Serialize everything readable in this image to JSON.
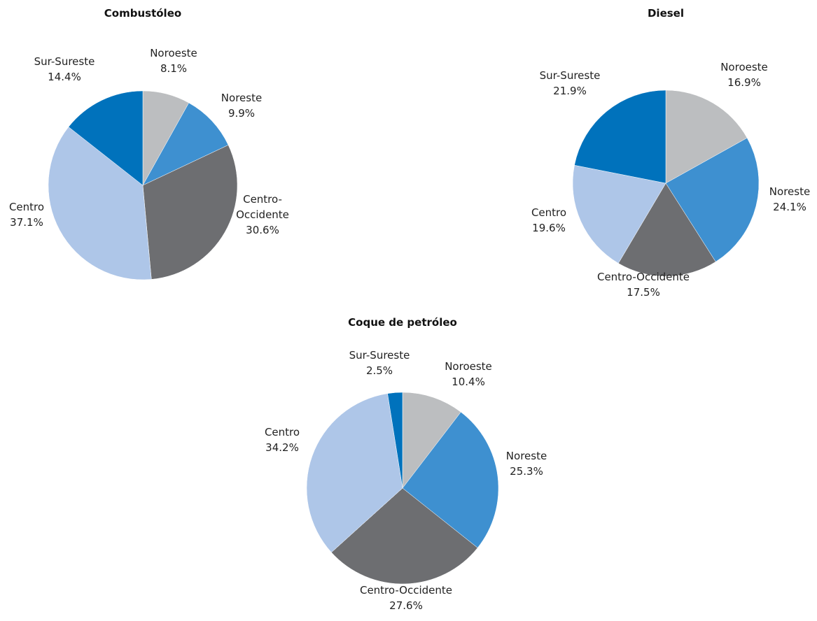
{
  "chart_data": [
    {
      "type": "pie",
      "title": "Combustóleo",
      "categories": [
        "Noroeste",
        "Noreste",
        "Centro-Occidente",
        "Centro",
        "Sur-Sureste"
      ],
      "values": [
        8.1,
        9.9,
        30.6,
        37.1,
        14.4
      ],
      "labels": [
        [
          "Noroeste",
          "8.1%"
        ],
        [
          "Noreste",
          "9.9%"
        ],
        [
          "Centro-",
          "Occidente",
          "30.6%"
        ],
        [
          "Centro",
          "37.1%"
        ],
        [
          "Sur-Sureste",
          "14.4%"
        ]
      ],
      "colors": [
        "#bcbec0",
        "#3e90d0",
        "#6d6e71",
        "#aec6e8",
        "#0072bc"
      ]
    },
    {
      "type": "pie",
      "title": "Diesel",
      "categories": [
        "Noroeste",
        "Noreste",
        "Centro-Occidente",
        "Centro",
        "Sur-Sureste"
      ],
      "values": [
        16.9,
        24.1,
        17.5,
        19.6,
        21.9
      ],
      "labels": [
        [
          "Noroeste",
          "16.9%"
        ],
        [
          "Noreste",
          "24.1%"
        ],
        [
          "Centro-Occidente",
          "17.5%"
        ],
        [
          "Centro",
          "19.6%"
        ],
        [
          "Sur-Sureste",
          "21.9%"
        ]
      ],
      "colors": [
        "#bcbec0",
        "#3e90d0",
        "#6d6e71",
        "#aec6e8",
        "#0072bc"
      ]
    },
    {
      "type": "pie",
      "title": "Coque de petróleo",
      "categories": [
        "Noroeste",
        "Noreste",
        "Centro-Occidente",
        "Centro",
        "Sur-Sureste"
      ],
      "values": [
        10.4,
        25.3,
        27.6,
        34.2,
        2.5
      ],
      "labels": [
        [
          "Noroeste",
          "10.4%"
        ],
        [
          "Noreste",
          "25.3%"
        ],
        [
          "Centro-Occidente",
          "27.6%"
        ],
        [
          "Centro",
          "34.2%"
        ],
        [
          "Sur-Sureste",
          "2.5%"
        ]
      ],
      "colors": [
        "#bcbec0",
        "#3e90d0",
        "#6d6e71",
        "#aec6e8",
        "#0072bc"
      ]
    }
  ]
}
